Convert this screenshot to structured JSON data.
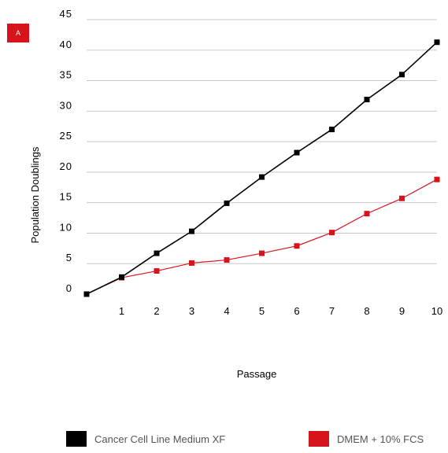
{
  "panel_label": "A",
  "colors": {
    "panel_badge": "#d7141c",
    "series_black": "#000000",
    "series_red": "#d7141c",
    "grid": "#c8c8c8",
    "text": "#000000",
    "legend_text": "#555555"
  },
  "chart_data": {
    "type": "line",
    "title": "",
    "xlabel": "Passage",
    "ylabel": "Population Doublings",
    "x": [
      0,
      1,
      2,
      3,
      4,
      5,
      6,
      7,
      8,
      9,
      10
    ],
    "x_tick_labels": [
      "1",
      "2",
      "3",
      "4",
      "5",
      "6",
      "7",
      "8",
      "9",
      "10"
    ],
    "y_ticks": [
      0,
      5,
      10,
      15,
      20,
      25,
      30,
      35,
      40,
      45
    ],
    "ylim": [
      0,
      45
    ],
    "xlim": [
      0,
      10
    ],
    "grid": "horizontal",
    "legend_position": "bottom",
    "series": [
      {
        "name": "Cancer Cell Line Medium XF",
        "color": "#000000",
        "marker": "square",
        "values": [
          0,
          2.8,
          6.7,
          10.3,
          14.9,
          19.2,
          23.2,
          27.0,
          31.9,
          36.0,
          41.3
        ]
      },
      {
        "name": "DMEM + 10% FCS",
        "color": "#d7141c",
        "marker": "square",
        "values": [
          0,
          2.7,
          3.8,
          5.1,
          5.6,
          6.7,
          7.9,
          10.1,
          13.2,
          15.7,
          18.8
        ]
      }
    ]
  }
}
